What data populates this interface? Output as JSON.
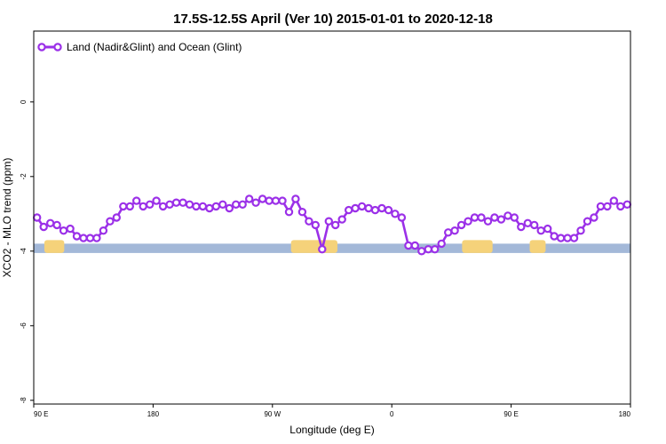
{
  "chart_data": {
    "type": "line",
    "title": "17.5S-12.5S April (Ver 10)   2015-01-01 to 2020-12-18",
    "xlabel": "Longitude (deg E)",
    "ylabel": "XCO2 - MLO trend (ppm)",
    "xlim": [
      90,
      540
    ],
    "ylim": [
      -8.1,
      1.9
    ],
    "x_ticks": [
      {
        "value": 90,
        "label": "90 E"
      },
      {
        "value": 180,
        "label": "180"
      },
      {
        "value": 270,
        "label": "90 W"
      },
      {
        "value": 360,
        "label": "0"
      },
      {
        "value": 450,
        "label": "90 E"
      },
      {
        "value": 540,
        "label": "180"
      }
    ],
    "y_ticks": [
      {
        "value": 0,
        "label": "0"
      },
      {
        "value": -2,
        "label": "-2"
      },
      {
        "value": -4,
        "label": "-4"
      },
      {
        "value": -6,
        "label": "-6"
      },
      {
        "value": -8,
        "label": "-8"
      }
    ],
    "grid": false,
    "legend_position": "top-left",
    "colors": {
      "series": "#9b30e8",
      "ocean_band": "#a3b8d8",
      "land_band": "#f5d27a"
    },
    "series": [
      {
        "name": "Land (Nadir&Glint) and Ocean (Glint)",
        "x": [
          92.5,
          97.5,
          102.5,
          107.5,
          112.5,
          117.5,
          122.5,
          127.5,
          132.5,
          137.5,
          142.5,
          147.5,
          152.5,
          157.5,
          162.5,
          167.5,
          172.5,
          177.5,
          182.5,
          187.5,
          192.5,
          197.5,
          202.5,
          207.5,
          212.5,
          217.5,
          222.5,
          227.5,
          232.5,
          237.5,
          242.5,
          247.5,
          252.5,
          257.5,
          262.5,
          267.5,
          272.5,
          277.5,
          282.5,
          287.5,
          292.5,
          297.5,
          302.5,
          307.5,
          312.5,
          317.5,
          322.5,
          327.5,
          332.5,
          337.5,
          342.5,
          347.5,
          352.5,
          357.5,
          362.5,
          367.5,
          372.5,
          377.5,
          382.5,
          387.5,
          392.5,
          397.5,
          402.5,
          407.5,
          412.5,
          417.5,
          422.5,
          427.5,
          432.5,
          437.5,
          442.5,
          447.5,
          452.5,
          457.5,
          462.5,
          467.5,
          472.5,
          477.5,
          482.5,
          487.5,
          492.5,
          497.5,
          502.5,
          507.5,
          512.5,
          517.5,
          522.5,
          527.5,
          532.5,
          537.5
        ],
        "values": [
          -3.1,
          -3.35,
          -3.25,
          -3.3,
          -3.45,
          -3.4,
          -3.6,
          -3.65,
          -3.65,
          -3.65,
          -3.45,
          -3.2,
          -3.1,
          -2.8,
          -2.8,
          -2.65,
          -2.8,
          -2.75,
          -2.65,
          -2.8,
          -2.75,
          -2.7,
          -2.7,
          -2.75,
          -2.8,
          -2.8,
          -2.85,
          -2.8,
          -2.75,
          -2.85,
          -2.75,
          -2.75,
          -2.6,
          -2.7,
          -2.6,
          -2.65,
          -2.65,
          -2.65,
          -2.95,
          -2.6,
          -2.95,
          -3.2,
          -3.3,
          -3.95,
          -3.2,
          -3.3,
          -3.15,
          -2.9,
          -2.85,
          -2.8,
          -2.85,
          -2.9,
          -2.85,
          -2.9,
          -3.0,
          -3.1,
          -3.85,
          -3.85,
          -4.0,
          -3.95,
          -3.95,
          -3.8,
          -3.5,
          -3.45,
          -3.3,
          -3.2,
          -3.1,
          -3.1,
          -3.2,
          -3.1,
          -3.15,
          -3.05,
          -3.1,
          -3.35,
          -3.25,
          -3.3,
          -3.45,
          -3.4,
          -3.6,
          -3.65,
          -3.65,
          -3.65,
          -3.45,
          -3.2,
          -3.1,
          -2.8,
          -2.8,
          -2.65,
          -2.8,
          -2.75
        ]
      }
    ],
    "land_mask": [
      [
        98,
        113
      ],
      [
        284,
        319
      ],
      [
        413,
        436
      ],
      [
        464,
        476
      ]
    ]
  }
}
